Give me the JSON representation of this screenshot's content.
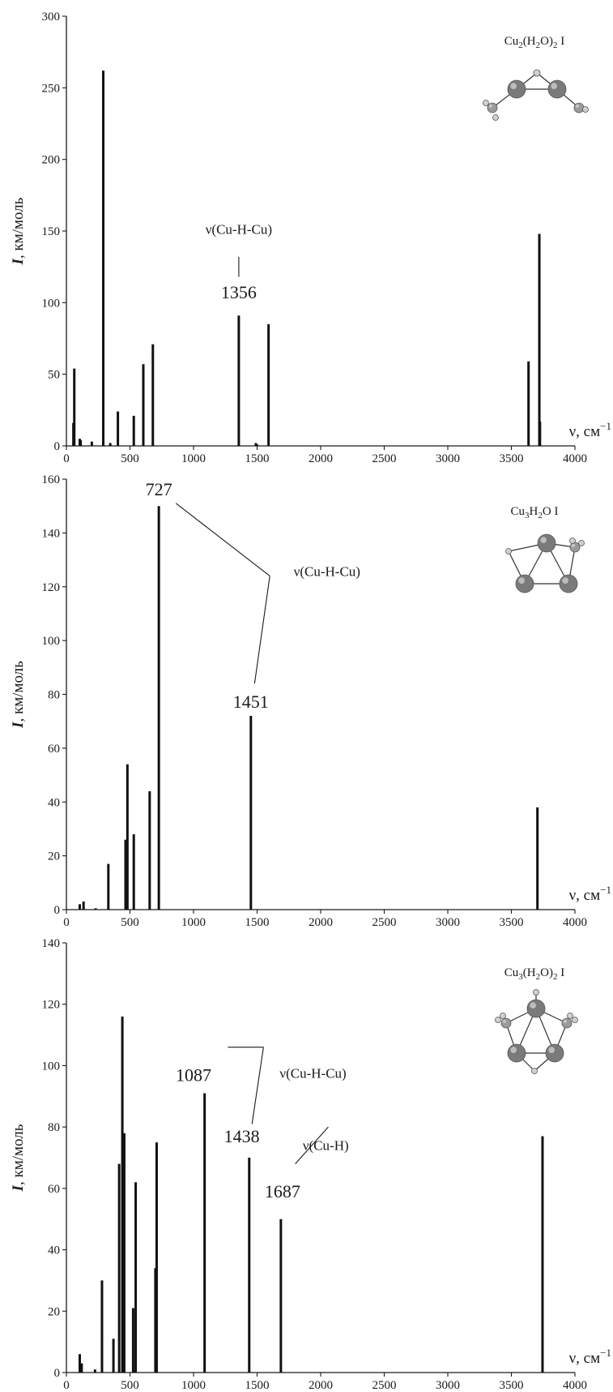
{
  "chart_data": [
    {
      "type": "bar",
      "xlabel_symbol": "ν",
      "xlabel_unit": "см",
      "xlabel_exp": "−1",
      "ylabel_symbol": "I",
      "ylabel_unit": "км/моль",
      "xlim": [
        0,
        4000
      ],
      "ylim": [
        0,
        300
      ],
      "xticks": [
        0,
        500,
        1000,
        1500,
        2000,
        2500,
        3000,
        3500,
        4000
      ],
      "yticks": [
        0,
        50,
        100,
        150,
        200,
        250,
        300
      ],
      "grid": false,
      "molecule_label": {
        "parts": [
          [
            "Cu",
            false
          ],
          [
            "2",
            true
          ],
          [
            "(H",
            false
          ],
          [
            "2",
            true
          ],
          [
            "O)",
            false
          ],
          [
            "2",
            true
          ],
          [
            " I",
            false
          ]
        ]
      },
      "lines": [
        {
          "x": 55,
          "y": 16
        },
        {
          "x": 62,
          "y": 54
        },
        {
          "x": 105,
          "y": 5
        },
        {
          "x": 112,
          "y": 4
        },
        {
          "x": 200,
          "y": 3
        },
        {
          "x": 290,
          "y": 262
        },
        {
          "x": 345,
          "y": 2
        },
        {
          "x": 405,
          "y": 24
        },
        {
          "x": 530,
          "y": 21
        },
        {
          "x": 605,
          "y": 57
        },
        {
          "x": 680,
          "y": 71
        },
        {
          "x": 1356,
          "y": 91
        },
        {
          "x": 1490,
          "y": 2
        },
        {
          "x": 1500,
          "y": 1
        },
        {
          "x": 1590,
          "y": 85
        },
        {
          "x": 3635,
          "y": 59
        },
        {
          "x": 3720,
          "y": 148
        },
        {
          "x": 3725,
          "y": 17
        }
      ],
      "annotations": [
        {
          "text": "1356",
          "x": 1356,
          "y": 103,
          "size": 22
        },
        {
          "text": "ν(Cu-H-Cu)",
          "x": 1356,
          "y": 148,
          "size": 17
        }
      ]
    },
    {
      "type": "bar",
      "xlabel_symbol": "ν",
      "xlabel_unit": "см",
      "xlabel_exp": "−1",
      "ylabel_symbol": "I",
      "ylabel_unit": "км/моль",
      "xlim": [
        0,
        4000
      ],
      "ylim": [
        0,
        160
      ],
      "xticks": [
        0,
        500,
        1000,
        1500,
        2000,
        2500,
        3000,
        3500,
        4000
      ],
      "yticks": [
        0,
        20,
        40,
        60,
        80,
        100,
        120,
        140,
        160
      ],
      "grid": false,
      "molecule_label": {
        "parts": [
          [
            "Cu",
            false
          ],
          [
            "3",
            true
          ],
          [
            "H",
            false
          ],
          [
            "2",
            true
          ],
          [
            "O I",
            false
          ]
        ]
      },
      "lines": [
        {
          "x": 105,
          "y": 2
        },
        {
          "x": 135,
          "y": 3
        },
        {
          "x": 230,
          "y": 0.5
        },
        {
          "x": 330,
          "y": 17
        },
        {
          "x": 465,
          "y": 26
        },
        {
          "x": 480,
          "y": 54
        },
        {
          "x": 530,
          "y": 28
        },
        {
          "x": 655,
          "y": 44
        },
        {
          "x": 727,
          "y": 150
        },
        {
          "x": 1451,
          "y": 72
        },
        {
          "x": 3705,
          "y": 38
        }
      ],
      "annotations": [
        {
          "text": "727",
          "x": 727,
          "y": 154,
          "size": 22
        },
        {
          "text": "1451",
          "x": 1451,
          "y": 75,
          "size": 22
        },
        {
          "text": "ν(Cu-H-Cu)",
          "x": 2050,
          "y": 124,
          "size": 17
        }
      ]
    },
    {
      "type": "bar",
      "xlabel_symbol": "ν",
      "xlabel_unit": "см",
      "xlabel_exp": "−1",
      "ylabel_symbol": "I",
      "ylabel_unit": "км/моль",
      "xlim": [
        0,
        4000
      ],
      "ylim": [
        0,
        140
      ],
      "xticks": [
        0,
        500,
        1000,
        1500,
        2000,
        2500,
        3000,
        3500,
        4000
      ],
      "yticks": [
        0,
        20,
        40,
        60,
        80,
        100,
        120,
        140
      ],
      "grid": false,
      "molecule_label": {
        "parts": [
          [
            "Cu",
            false
          ],
          [
            "3",
            true
          ],
          [
            "(H",
            false
          ],
          [
            "2",
            true
          ],
          [
            "O)",
            false
          ],
          [
            "2",
            true
          ],
          [
            " I",
            false
          ]
        ]
      },
      "lines": [
        {
          "x": 105,
          "y": 6
        },
        {
          "x": 120,
          "y": 3
        },
        {
          "x": 225,
          "y": 1
        },
        {
          "x": 280,
          "y": 30
        },
        {
          "x": 370,
          "y": 11
        },
        {
          "x": 415,
          "y": 68
        },
        {
          "x": 440,
          "y": 116
        },
        {
          "x": 455,
          "y": 78
        },
        {
          "x": 525,
          "y": 21
        },
        {
          "x": 545,
          "y": 62
        },
        {
          "x": 700,
          "y": 34
        },
        {
          "x": 710,
          "y": 75
        },
        {
          "x": 1087,
          "y": 91
        },
        {
          "x": 1438,
          "y": 70
        },
        {
          "x": 1687,
          "y": 50
        },
        {
          "x": 3745,
          "y": 77
        }
      ],
      "annotations": [
        {
          "text": "1087",
          "x": 1000,
          "y": 95,
          "size": 22
        },
        {
          "text": "1438",
          "x": 1380,
          "y": 75,
          "size": 22
        },
        {
          "text": "1687",
          "x": 1700,
          "y": 57,
          "size": 22
        },
        {
          "text": "ν(Cu-H-Cu)",
          "x": 1940,
          "y": 96,
          "size": 17
        },
        {
          "text": "ν(Cu-H)",
          "x": 2040,
          "y": 72.5,
          "size": 17
        }
      ]
    }
  ]
}
